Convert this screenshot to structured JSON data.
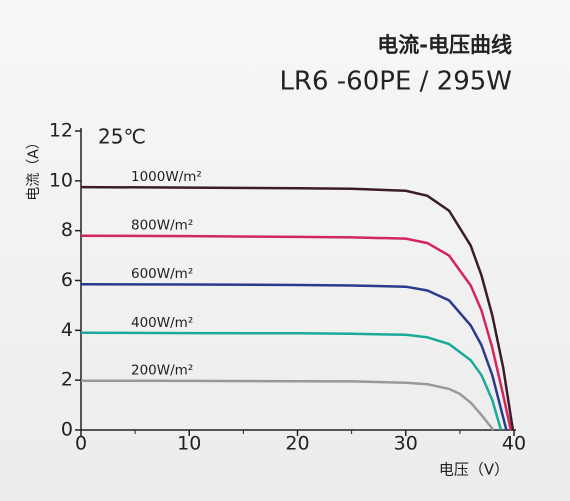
{
  "chart_data": {
    "type": "line",
    "title": "电流-电压曲线",
    "subtitle": "LR6 -60PE / 295W",
    "annotation": "25℃",
    "xlabel": "电压（V）",
    "ylabel": "电流（A）",
    "xlim": [
      0,
      40
    ],
    "xticks": [
      0,
      10,
      20,
      30,
      40
    ],
    "xminorticks": [
      5,
      15,
      25,
      35
    ],
    "ylim": [
      0,
      12
    ],
    "yticks": [
      0,
      2,
      4,
      6,
      8,
      10,
      12
    ],
    "series": [
      {
        "name": "1000W/m²",
        "color": "#3b1c2c",
        "x": [
          0,
          10,
          20,
          25,
          30,
          32,
          34,
          36,
          37,
          38,
          39,
          39.9
        ],
        "values": [
          9.75,
          9.73,
          9.7,
          9.68,
          9.6,
          9.4,
          8.8,
          7.4,
          6.2,
          4.6,
          2.5,
          0
        ]
      },
      {
        "name": "800W/m²",
        "color": "#d2275c",
        "x": [
          0,
          10,
          20,
          25,
          30,
          32,
          34,
          36,
          37,
          38,
          39,
          39.7
        ],
        "values": [
          7.8,
          7.78,
          7.75,
          7.73,
          7.68,
          7.5,
          7.0,
          5.8,
          4.8,
          3.3,
          1.4,
          0
        ]
      },
      {
        "name": "600W/m²",
        "color": "#2b3a8c",
        "x": [
          0,
          10,
          20,
          25,
          30,
          32,
          34,
          36,
          37,
          38,
          39.3
        ],
        "values": [
          5.85,
          5.84,
          5.82,
          5.8,
          5.75,
          5.6,
          5.2,
          4.2,
          3.4,
          2.2,
          0
        ]
      },
      {
        "name": "400W/m²",
        "color": "#1ba99b",
        "x": [
          0,
          10,
          20,
          25,
          30,
          32,
          34,
          36,
          37,
          38,
          38.8
        ],
        "values": [
          3.9,
          3.89,
          3.88,
          3.86,
          3.82,
          3.72,
          3.45,
          2.8,
          2.2,
          1.2,
          0
        ]
      },
      {
        "name": "200W/m²",
        "color": "#999999",
        "x": [
          0,
          10,
          20,
          25,
          30,
          32,
          34,
          35,
          36,
          37,
          38.1
        ],
        "values": [
          1.98,
          1.97,
          1.96,
          1.95,
          1.9,
          1.84,
          1.65,
          1.45,
          1.1,
          0.6,
          0
        ]
      }
    ]
  }
}
